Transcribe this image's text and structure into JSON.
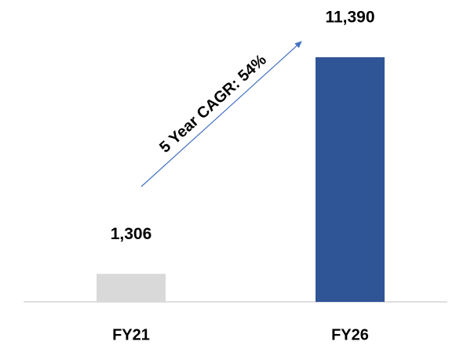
{
  "chart_data": {
    "type": "bar",
    "categories": [
      "FY21",
      "FY26"
    ],
    "values": [
      1306,
      11390
    ],
    "value_labels": [
      "1,306",
      "11,390"
    ],
    "colors": [
      "#d9d9d9",
      "#2f5597"
    ],
    "annotation": "5 Year CAGR: 54%",
    "annotation_color": "#4472c4"
  }
}
